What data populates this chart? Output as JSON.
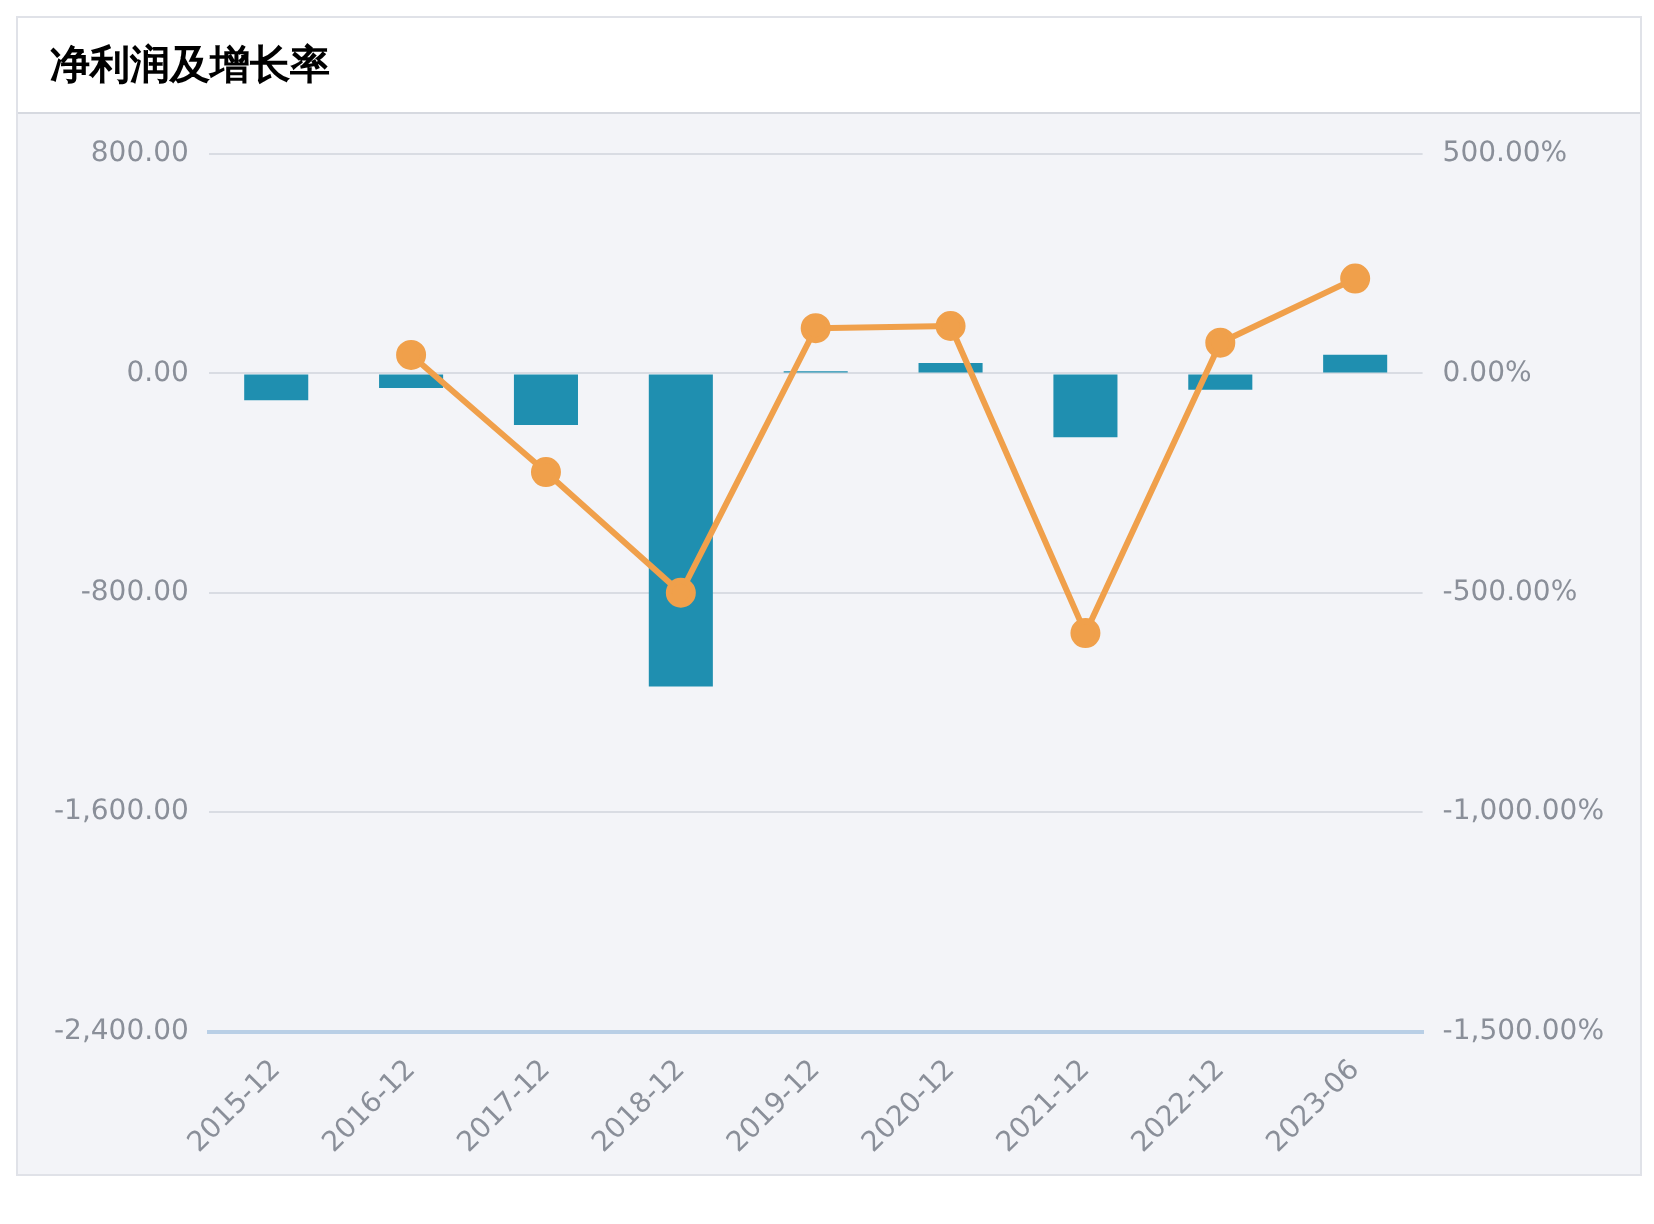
{
  "chart_data": {
    "type": "bar",
    "title": "净利润及增长率",
    "categories": [
      "2015-12",
      "2016-12",
      "2017-12",
      "2018-12",
      "2019-12",
      "2020-12",
      "2021-12",
      "2022-12",
      "2023-06"
    ],
    "series": [
      {
        "color": "#1f8fb0",
        "values": [
          -98,
          -53,
          -188,
          -1142,
          8,
          38,
          -233,
          -60,
          68
        ]
      },
      {
        "type": "line",
        "axis": "y2",
        "color": "#f0a04b",
        "marker": "circle",
        "values": [
          null,
          42,
          -225,
          -500,
          103,
          108,
          -592,
          70,
          216
        ]
      }
    ],
    "ylim": [
      -2400,
      800
    ],
    "yticks": [
      {
        "value": -2400,
        "label": "-2,400.00"
      },
      {
        "value": -1600,
        "label": "-1,600.00"
      },
      {
        "value": -800,
        "label": "-800.00"
      },
      {
        "value": 0,
        "label": "0.00"
      },
      {
        "value": 800,
        "label": "800.00"
      }
    ],
    "y2lim": [
      -1500,
      500
    ],
    "y2ticks": [
      {
        "value": -1500,
        "label": "-1,500.00%"
      },
      {
        "value": -1000,
        "label": "-1,000.00%"
      },
      {
        "value": -500,
        "label": "-500.00%"
      },
      {
        "value": 0,
        "label": "0.00%"
      },
      {
        "value": 500,
        "label": "500.00%"
      }
    ],
    "grid": "y",
    "legend": false
  }
}
